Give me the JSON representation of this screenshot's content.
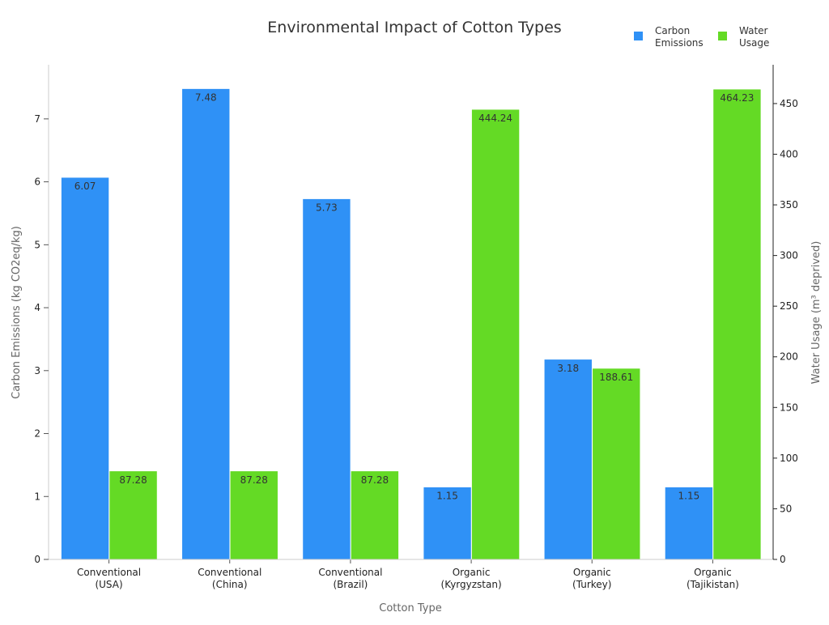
{
  "chart_data": {
    "type": "bar",
    "title": "Environmental Impact of Cotton Types",
    "xlabel": "Cotton Type",
    "ylabel": "Carbon Emissions (kg CO2eq/kg)",
    "y2label": "Water Usage (m³ deprived)",
    "categories": [
      [
        "Conventional",
        "(USA)"
      ],
      [
        "Conventional",
        "(China)"
      ],
      [
        "Conventional",
        "(Brazil)"
      ],
      [
        "Organic",
        "(Kyrgyzstan)"
      ],
      [
        "Organic",
        "(Turkey)"
      ],
      [
        "Organic",
        "(Tajikistan)"
      ]
    ],
    "series": [
      {
        "name": "Carbon Emissions",
        "legend": [
          "Carbon",
          "Emissions"
        ],
        "axis": "left",
        "color": "#2f91f6",
        "values": [
          6.07,
          7.48,
          5.73,
          1.15,
          3.18,
          1.15
        ],
        "labels": [
          "6.07",
          "7.48",
          "5.73",
          "1.15",
          "3.18",
          "1.15"
        ]
      },
      {
        "name": "Water Usage",
        "legend": [
          "Water",
          "Usage"
        ],
        "axis": "right",
        "color": "#64da25",
        "values": [
          87.28,
          87.28,
          87.28,
          444.24,
          188.61,
          464.23
        ],
        "labels": [
          "87.28",
          "87.28",
          "87.28",
          "444.24",
          "188.61",
          "464.23"
        ]
      }
    ],
    "ylim": [
      0,
      7.86
    ],
    "y2lim": [
      0,
      488.3
    ],
    "yticks": [
      "0",
      "1",
      "2",
      "3",
      "4",
      "5",
      "6",
      "7"
    ],
    "y2ticks": [
      "0",
      "50",
      "100",
      "150",
      "200",
      "250",
      "300",
      "350",
      "400",
      "450"
    ],
    "grid": false,
    "legend_position": "top-right"
  }
}
